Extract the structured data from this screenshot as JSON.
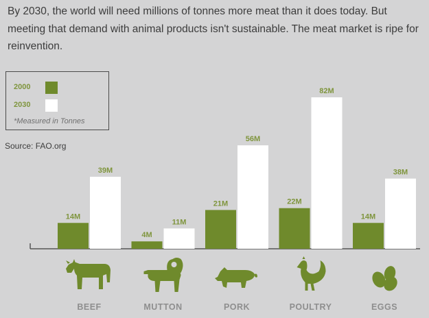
{
  "intro_text": "By 2030, the world will need millions of tonnes more meat than it does today. But meeting that demand with animal products isn't sustainable. The meat market is ripe for reinvention.",
  "legend": {
    "items": [
      {
        "label": "2000",
        "color": "#6f8a2c"
      },
      {
        "label": "2030",
        "color": "#ffffff"
      }
    ],
    "note": "*Measured in Tonnes"
  },
  "source": "Source: FAO.org",
  "colors": {
    "bar_2000": "#6f8a2c",
    "bar_2030": "#ffffff",
    "label_2000": "#7f953d",
    "label_2030": "#7f953d",
    "icon": "#6f8a2c",
    "axis": "#555555"
  },
  "chart_data": {
    "type": "bar",
    "categories": [
      "BEEF",
      "MUTTON",
      "PORK",
      "POULTRY",
      "EGGS"
    ],
    "series": [
      {
        "name": "2000",
        "values": [
          14,
          4,
          21,
          22,
          14
        ],
        "labels": [
          "14M",
          "4M",
          "21M",
          "22M",
          "14M"
        ]
      },
      {
        "name": "2030",
        "values": [
          39,
          11,
          56,
          82,
          38
        ],
        "labels": [
          "39M",
          "11M",
          "56M",
          "82M",
          "38M"
        ]
      }
    ],
    "icons": [
      "cow-icon",
      "ram-icon",
      "pig-icon",
      "chicken-icon",
      "eggs-icon"
    ],
    "ylim": [
      0,
      82
    ],
    "grid": false,
    "legend_position": "top-left"
  }
}
